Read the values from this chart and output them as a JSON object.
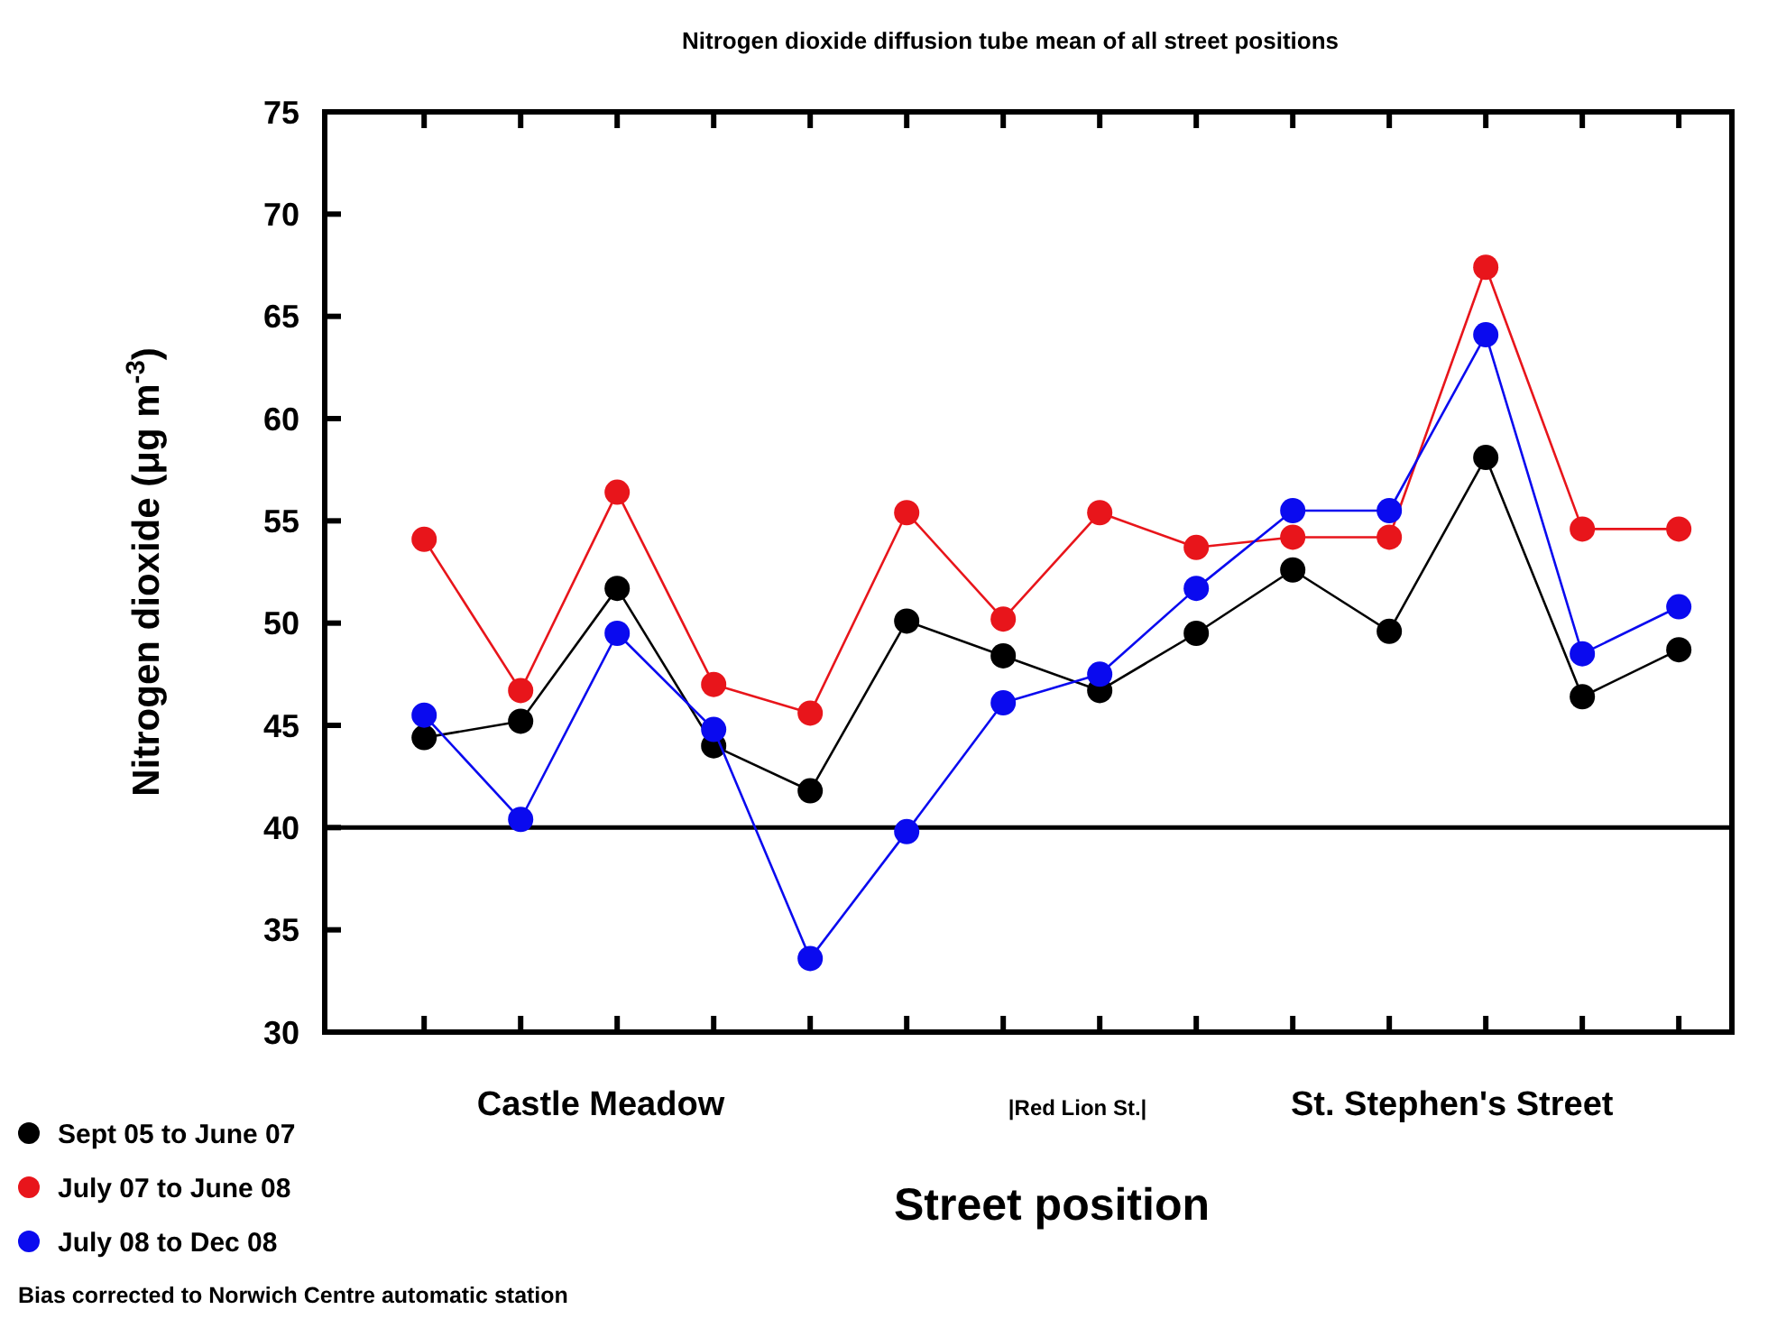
{
  "chart_data": {
    "type": "line",
    "title": "Nitrogen dioxide diffusion tube mean of all street positions",
    "xlabel": "Street position",
    "ylabel": "Nitrogen dioxide (μg m$^{-3}$)",
    "categories": [
      null,
      null,
      null,
      null,
      null,
      null,
      null,
      null,
      null,
      null,
      null,
      null,
      null,
      null
    ],
    "series": [
      {
        "name": "Sept 05 to June 07",
        "color": "#000000",
        "values": [
          44.4,
          45.2,
          51.7,
          44.0,
          41.8,
          50.1,
          48.4,
          46.7,
          49.5,
          52.6,
          49.6,
          58.1,
          46.4,
          48.7
        ]
      },
      {
        "name": "July 07 to June 08",
        "color": "#e8151b",
        "values": [
          54.1,
          46.7,
          56.4,
          47.0,
          45.6,
          55.4,
          50.2,
          55.4,
          53.7,
          54.2,
          54.2,
          67.4,
          54.6,
          54.6
        ]
      },
      {
        "name": "July 08 to Dec 08",
        "color": "#0a0aef",
        "values": [
          45.5,
          40.4,
          49.5,
          44.8,
          33.6,
          39.8,
          46.1,
          47.5,
          51.7,
          55.5,
          55.5,
          64.1,
          48.5,
          50.8
        ]
      }
    ],
    "ylim": [
      30,
      75
    ],
    "yticks": [
      30,
      35,
      40,
      45,
      50,
      55,
      60,
      65,
      70,
      75
    ],
    "ref_lines": [
      {
        "axis": "y",
        "value": 40,
        "color": "#000000"
      }
    ],
    "annotations": [
      "Castle Meadow",
      "|Red Lion St.|",
      "St. Stephen's Street",
      "Bias corrected to Norwich Centre automatic station"
    ],
    "legend": "bottom left",
    "marker": "circle",
    "line_style": "solid",
    "tick_labels": "y"
  }
}
